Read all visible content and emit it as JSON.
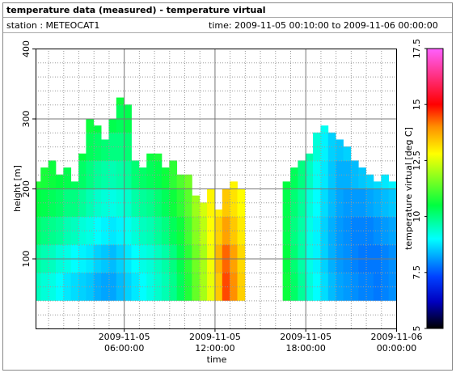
{
  "chart_data": {
    "type": "heatmap",
    "title": "temperature data (measured) - temperature virtual",
    "station": "station : METEOCAT1",
    "period": "time: 2009-11-05 00:10:00 to 2009-11-06 00:00:00",
    "xlabel": "time",
    "ylabel": "height [m]",
    "zlabel": "temperature virtual [deg C]",
    "xlim": [
      0.1667,
      24
    ],
    "xticks": [
      {
        "value": 6,
        "label": "2009-11-05 06:00:00"
      },
      {
        "value": 12,
        "label": "2009-11-05 12:00:00"
      },
      {
        "value": 18,
        "label": "2009-11-05 18:00:00"
      },
      {
        "value": 24,
        "label": "2009-11-06 00:00:00"
      }
    ],
    "xminor": [
      1,
      2,
      3,
      4,
      5,
      7,
      8,
      9,
      10,
      11,
      13,
      14,
      15,
      16,
      17,
      19,
      20,
      21,
      22,
      23
    ],
    "ylim": [
      0,
      400
    ],
    "yticks": [
      100,
      200,
      300,
      400
    ],
    "yminor": [
      20,
      40,
      60,
      80,
      120,
      140,
      160,
      180,
      220,
      240,
      260,
      280,
      320,
      340,
      360,
      380
    ],
    "zlim": [
      5,
      17.5
    ],
    "zticks": [
      5,
      7.5,
      10,
      12.5,
      15,
      17.5
    ],
    "colormap": [
      [
        5,
        "#000000"
      ],
      [
        6.2,
        "#0000c0"
      ],
      [
        7.3,
        "#0040ff"
      ],
      [
        9,
        "#00ffff"
      ],
      [
        10.5,
        "#00ff40"
      ],
      [
        12.8,
        "#ffff00"
      ],
      [
        14,
        "#ff9000"
      ],
      [
        15,
        "#ff0000"
      ],
      [
        17.5,
        "#ff60ff"
      ]
    ],
    "width": 0.5,
    "levels": [
      40,
      80,
      120,
      160,
      200,
      240,
      280,
      320
    ],
    "x": [
      0.25,
      0.75,
      1.25,
      1.75,
      2.25,
      2.75,
      3.25,
      3.75,
      4.25,
      4.75,
      5.25,
      5.75,
      6.25,
      6.75,
      7.25,
      7.75,
      8.25,
      8.75,
      9.25,
      9.75,
      10.25,
      10.75,
      11.25,
      11.75,
      12.25,
      12.75,
      13.25,
      13.75,
      14.25,
      14.75,
      15.25,
      15.75,
      16.25,
      16.75,
      17.25,
      17.75,
      18.25,
      18.75,
      19.25,
      19.75,
      20.25,
      20.75,
      21.25,
      21.75,
      22.25,
      22.75,
      23.25,
      23.75
    ],
    "tops": [
      210,
      230,
      240,
      220,
      230,
      210,
      250,
      300,
      290,
      270,
      300,
      330,
      320,
      240,
      230,
      250,
      250,
      230,
      240,
      220,
      220,
      190,
      180,
      200,
      170,
      200,
      210,
      200,
      null,
      null,
      null,
      null,
      null,
      210,
      230,
      240,
      250,
      280,
      290,
      280,
      270,
      260,
      240,
      230,
      220,
      210,
      220,
      210
    ],
    "values": [
      [
        9.5,
        9.8,
        10.2,
        10.5,
        10.8
      ],
      [
        9.3,
        9.6,
        10,
        10.4,
        10.7
      ],
      [
        9.2,
        9.5,
        9.9,
        10.3,
        10.6
      ],
      [
        9,
        9.3,
        9.8,
        10.2,
        10.5
      ],
      [
        8.8,
        9.2,
        9.6,
        10,
        10.4
      ],
      [
        8.7,
        9,
        9.5,
        10,
        10.3
      ],
      [
        8.6,
        8.9,
        9.3,
        9.8,
        10.2,
        10.5
      ],
      [
        8.5,
        8.8,
        9.2,
        9.6,
        10,
        10.3,
        10.6
      ],
      [
        8.3,
        8.6,
        9,
        9.4,
        9.8,
        10.2,
        10.5
      ],
      [
        8.2,
        8.5,
        8.9,
        9.3,
        9.7,
        10.1
      ],
      [
        8.2,
        8.4,
        8.8,
        9.2,
        9.6,
        10,
        10.4
      ],
      [
        8.4,
        8.6,
        8.9,
        9.3,
        9.7,
        10,
        10.3,
        10.6
      ],
      [
        8.6,
        8.8,
        9.1,
        9.4,
        9.8,
        10.1,
        10.4
      ],
      [
        8.8,
        9,
        9.3,
        9.7,
        10.1
      ],
      [
        9,
        9.2,
        9.5,
        9.8,
        10.2
      ],
      [
        9.2,
        9.3,
        9.6,
        9.9,
        10.3,
        10.6
      ],
      [
        9.4,
        9.5,
        9.8,
        10.1,
        10.4,
        10.7
      ],
      [
        9.6,
        9.7,
        10,
        10.3,
        10.6
      ],
      [
        9.9,
        10,
        10.3,
        10.6,
        10.9
      ],
      [
        10.3,
        10.4,
        10.6,
        10.9,
        11.2
      ],
      [
        10.8,
        10.9,
        11.1,
        11.3,
        11.5
      ],
      [
        11.4,
        11.5,
        11.7,
        11.9
      ],
      [
        12,
        12,
        12.2,
        12.4
      ],
      [
        12.6,
        12.7,
        12.8,
        12.9
      ],
      [
        13.4,
        13.6,
        13.3,
        13
      ],
      [
        14.5,
        14.3,
        13.8,
        13.4
      ],
      [
        14,
        13.8,
        13.4,
        13.1,
        12.9
      ],
      [
        13.3,
        13.2,
        13,
        12.8
      ],
      null,
      null,
      null,
      null,
      null,
      [
        10.6,
        10.5,
        10.4,
        10.4,
        10.5
      ],
      [
        10.2,
        10.1,
        10,
        10.1,
        10.3
      ],
      [
        9.8,
        9.7,
        9.7,
        9.8,
        10
      ],
      [
        9.3,
        9.2,
        9.2,
        9.3,
        9.5,
        9.7
      ],
      [
        9,
        8.9,
        8.9,
        9,
        9.1,
        9.3
      ],
      [
        8.7,
        8.6,
        8.6,
        8.7,
        8.8,
        8.9,
        9.1
      ],
      [
        8.4,
        8.3,
        8.3,
        8.4,
        8.5,
        8.6
      ],
      [
        8.2,
        8.1,
        8.1,
        8.2,
        8.3,
        8.5
      ],
      [
        8.1,
        8,
        8,
        8.1,
        8.3,
        8.6
      ],
      [
        8,
        7.9,
        7.9,
        8.1,
        8.4
      ],
      [
        7.9,
        7.8,
        7.9,
        8.1,
        8.5
      ],
      [
        7.9,
        7.8,
        7.9,
        8.2,
        8.6
      ],
      [
        7.8,
        7.8,
        8,
        8.3,
        8.7
      ],
      [
        7.9,
        7.9,
        8.1,
        8.4,
        8.8
      ],
      [
        8,
        8,
        8.2,
        8.5,
        8.9
      ]
    ]
  }
}
